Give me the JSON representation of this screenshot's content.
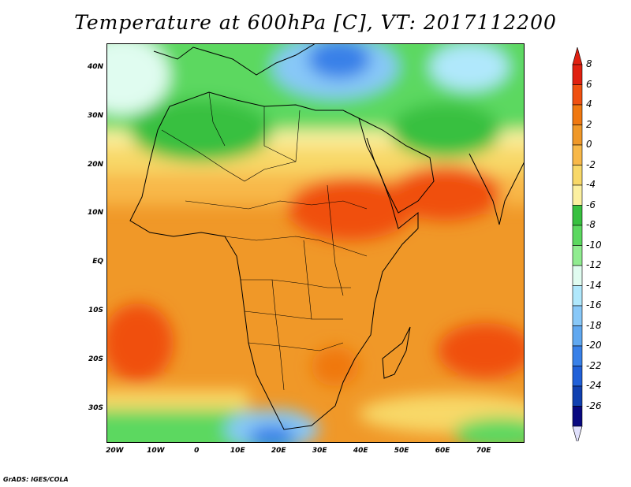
{
  "title": "Temperature at 600hPa [C], VT: 2017112200",
  "credit": "GrADS: IGES/COLA",
  "lat_ticks": [
    "40N",
    "30N",
    "20N",
    "10N",
    "EQ",
    "10S",
    "20S",
    "30S"
  ],
  "lat_values": [
    40,
    30,
    20,
    10,
    0,
    -10,
    -20,
    -30
  ],
  "lon_ticks": [
    "20W",
    "10W",
    "0",
    "10E",
    "20E",
    "30E",
    "40E",
    "50E",
    "60E",
    "70E"
  ],
  "lon_values": [
    -20,
    -10,
    0,
    10,
    20,
    30,
    40,
    50,
    60,
    70
  ],
  "extent": {
    "lon": [
      -22,
      80
    ],
    "lat": [
      -37,
      45
    ]
  },
  "colorbar": {
    "labels": [
      "8",
      "6",
      "4",
      "2",
      "0",
      "-2",
      "-4",
      "-6",
      "-8",
      "-10",
      "-12",
      "-14",
      "-16",
      "-18",
      "-20",
      "-22",
      "-24",
      "-26"
    ],
    "colors": [
      "#e02010",
      "#f05010",
      "#f07810",
      "#f09828",
      "#f8b848",
      "#f8d868",
      "#fcf0a0",
      "#38c040",
      "#5cd860",
      "#90ec90",
      "#e0fcf0",
      "#b0e8fc",
      "#88c8f8",
      "#60a8f0",
      "#3880e8",
      "#2060d8",
      "#1040b0",
      "#080880"
    ],
    "top_color": "#e02010",
    "bottom_color": "#e0e0fc"
  }
}
